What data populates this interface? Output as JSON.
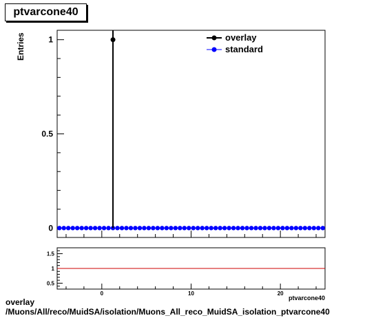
{
  "title": "ptvarcone40",
  "ylabel": "Entries",
  "caption_line1": "overlay",
  "caption_line2": "/Muons/All/reco/MuidSA/isolation/Muons_All_reco_MuidSA_isolation_ptvarcone40",
  "xlabel_clipped": "ptvarcone40",
  "colors": {
    "overlay": "#000000",
    "standard": "#0000ff",
    "ratio_line": "#cc0000"
  },
  "chart_data": [
    {
      "type": "line",
      "title": "ptvarcone40",
      "ylabel": "Entries",
      "xlim": [
        -5,
        25
      ],
      "ylim": [
        -0.05,
        1.05
      ],
      "yticks": [
        0,
        0.5,
        1
      ],
      "ytick_labels": [
        "0",
        "0.5",
        "1"
      ],
      "legend": {
        "position": "top-right",
        "entries": [
          "overlay",
          "standard"
        ]
      },
      "series": [
        {
          "name": "overlay",
          "points": [
            [
              1.25,
              1
            ]
          ],
          "spike_x": 1.25,
          "baseline": 0
        },
        {
          "name": "standard",
          "x_from": -4.75,
          "x_step": 0.5,
          "count": 60,
          "value": 0
        }
      ]
    },
    {
      "type": "line",
      "xlim": [
        -5,
        25
      ],
      "ylim": [
        0.3,
        1.7
      ],
      "yticks": [
        0.5,
        1,
        1.5
      ],
      "ytick_labels": [
        "0.5",
        "1",
        "1.5"
      ],
      "xticks": [
        0,
        10,
        20
      ],
      "xtick_labels": [
        "0",
        "10",
        "20"
      ],
      "reference_line": 1
    }
  ]
}
